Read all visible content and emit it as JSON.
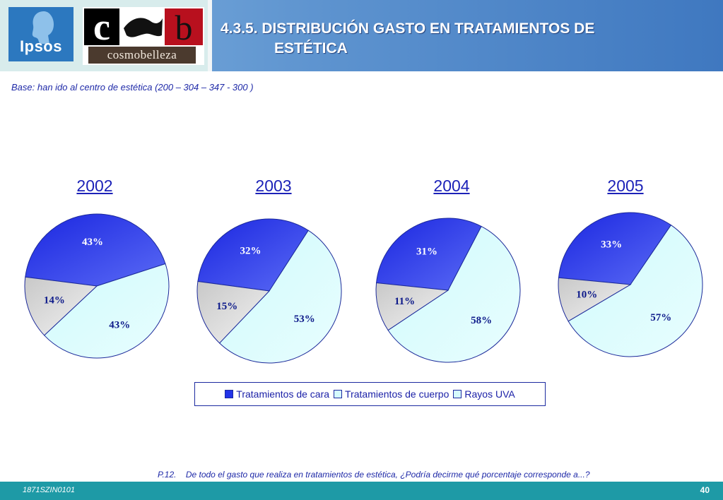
{
  "header": {
    "title_line1": "4.3.5. DISTRIBUCIÓN GASTO EN TRATAMIENTOS DE",
    "title_line2": "ESTÉTICA",
    "logo1_text": "Ipsos",
    "logo2_text": "cosmobelleza"
  },
  "subtitle": "Base: han ido al centro de estética (200 – 304 – 347 - 300 )",
  "colors": {
    "cara": "#2233e8",
    "cuerpo": "#d5fbfc",
    "uva": "#d6d6d6",
    "text_blue": "#1c22b8",
    "footer": "#1e9aa6"
  },
  "chart_data": {
    "type": "pie",
    "categories": [
      "Tratamientos de cara",
      "Tratamientos de cuerpo",
      "Rayos UVA"
    ],
    "charts": [
      {
        "year": "2002",
        "values": [
          43,
          43,
          14
        ]
      },
      {
        "year": "2003",
        "values": [
          32,
          53,
          15
        ]
      },
      {
        "year": "2004",
        "values": [
          31,
          58,
          11
        ]
      },
      {
        "year": "2005",
        "values": [
          33,
          57,
          10
        ]
      }
    ],
    "value_suffix": "%",
    "legend": [
      "Tratamientos de cara",
      "Tratamientos de cuerpo",
      "Rayos UVA"
    ],
    "legend_position": "bottom-center"
  },
  "question": {
    "code": "P.12.",
    "text": "De todo el gasto que realiza en tratamientos de estética, ¿Podría decirme qué porcentaje corresponde a...?"
  },
  "footer": {
    "code": "1871SZIN0101",
    "page": "40"
  }
}
